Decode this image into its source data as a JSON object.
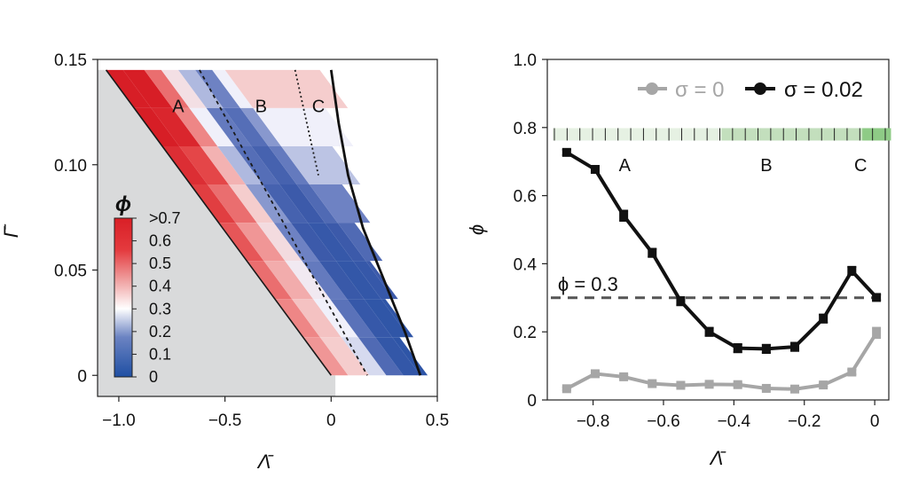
{
  "chart_data": [
    {
      "type": "heatmap",
      "panel": "left",
      "xlabel": "Λ̄",
      "ylabel": "Γ̄",
      "xlim": [
        -1.1,
        0.5
      ],
      "ylim": [
        -0.01,
        0.15
      ],
      "xticks": [
        "−1.0",
        "−0.5",
        "0",
        "0.5"
      ],
      "xtick_values": [
        -1.0,
        -0.5,
        0.0,
        0.5
      ],
      "yticks": [
        "0",
        "0.05",
        "0.10",
        "0.15"
      ],
      "ytick_values": [
        0.0,
        0.05,
        0.1,
        0.15
      ],
      "region_labels": [
        {
          "text": "A",
          "x": -0.72,
          "y": 0.128
        },
        {
          "text": "B",
          "x": -0.33,
          "y": 0.128
        },
        {
          "text": "C",
          "x": -0.06,
          "y": 0.128
        }
      ],
      "colorbar": {
        "title": "ϕ",
        "labels": [
          ">0.7",
          "0.6",
          "0.5",
          "0.4",
          "0.3",
          "0.2",
          "0.1",
          "0"
        ],
        "label_values": [
          0.7,
          0.6,
          0.5,
          0.4,
          0.3,
          0.2,
          0.1,
          0.0
        ]
      },
      "boundaries": {
        "lower_solid": {
          "x": [
            -1.06,
            0.0
          ],
          "y": [
            0.145,
            0.0
          ]
        },
        "dashed_AB": {
          "x": [
            -0.62,
            0.17
          ],
          "y": [
            0.145,
            0.0
          ]
        },
        "dotted_BC": {
          "x": [
            -0.17,
            -0.06
          ],
          "y": [
            0.145,
            0.095
          ]
        },
        "upper_solid": {
          "x": [
            0.0,
            0.035,
            0.08,
            0.15,
            0.25,
            0.35,
            0.42
          ],
          "y": [
            0.145,
            0.12,
            0.095,
            0.07,
            0.045,
            0.02,
            0.0
          ]
        }
      },
      "ridges": {
        "a_offsets": [
          -1.06,
          -0.88,
          -0.7,
          -0.52,
          -0.34,
          -0.16,
          0.0,
          0.16,
          0.32
        ],
        "b_offsets": [
          0.0,
          0.08,
          0.18,
          0.26,
          0.34,
          0.42,
          0.5,
          0.56
        ],
        "values": [
          [
            0.75,
            0.72,
            0.55,
            0.35,
            0.25,
            0.2,
            0.3,
            0.4
          ],
          [
            0.7,
            0.68,
            0.52,
            0.3,
            0.18,
            0.15,
            0.22,
            0.3
          ],
          [
            0.66,
            0.6,
            0.45,
            0.25,
            0.15,
            0.12,
            0.18,
            0.26
          ],
          [
            0.62,
            0.55,
            0.4,
            0.22,
            0.12,
            0.1,
            0.14,
            0.2
          ],
          [
            0.58,
            0.5,
            0.36,
            0.2,
            0.1,
            0.08,
            0.1,
            0.14
          ],
          [
            0.55,
            0.46,
            0.32,
            0.18,
            0.09,
            0.07,
            0.08,
            0.1
          ],
          [
            0.52,
            0.42,
            0.3,
            0.16,
            0.08,
            0.06,
            0.06,
            0.08
          ],
          [
            0.5,
            0.4,
            0.28,
            0.14,
            0.07,
            0.05,
            0.05,
            0.06
          ]
        ]
      },
      "grey_region": "excluded"
    },
    {
      "type": "line",
      "panel": "right",
      "xlabel": "Λ̄",
      "ylabel": "ϕ",
      "xlim": [
        -0.93,
        0.04
      ],
      "ylim": [
        0.0,
        1.0
      ],
      "xticks": [
        "−0.8",
        "−0.6",
        "−0.4",
        "−0.2",
        "0"
      ],
      "xtick_values": [
        -0.8,
        -0.6,
        -0.4,
        -0.2,
        0.0
      ],
      "yticks": [
        "0",
        "0.2",
        "0.4",
        "0.6",
        "0.8",
        "1.0"
      ],
      "ytick_values": [
        0.0,
        0.2,
        0.4,
        0.6,
        0.8,
        1.0
      ],
      "x": [
        -0.875,
        -0.794,
        -0.713,
        -0.632,
        -0.551,
        -0.47,
        -0.389,
        -0.308,
        -0.227,
        -0.146,
        -0.065,
        0.005
      ],
      "series": [
        {
          "name": "σ = 0",
          "color": "#a6a6a6",
          "values": [
            0.033,
            0.077,
            0.068,
            0.048,
            0.043,
            0.046,
            0.045,
            0.034,
            0.032,
            0.044,
            0.082,
            0.197
          ],
          "errors": [
            0.004,
            0.006,
            0.006,
            0.005,
            0.005,
            0.005,
            0.005,
            0.004,
            0.004,
            0.005,
            0.007,
            0.015
          ]
        },
        {
          "name": "σ = 0.02",
          "color": "#111111",
          "values": [
            0.727,
            0.677,
            0.541,
            0.432,
            0.29,
            0.2,
            0.152,
            0.15,
            0.156,
            0.239,
            0.379,
            0.301
          ],
          "errors": [
            0.008,
            0.01,
            0.015,
            0.012,
            0.012,
            0.012,
            0.012,
            0.012,
            0.012,
            0.012,
            0.012,
            0.008
          ]
        }
      ],
      "reference_line": {
        "y": 0.3,
        "label": "ϕ = 0.3",
        "color": "#555555",
        "style": "dashed"
      },
      "strip": {
        "y_center": 0.78,
        "colors": [
          "#e6f1e3",
          "#e6f1e3",
          "#e6f1e3",
          "#e6f1e3",
          "#e6f1e3",
          "#e4f0e1",
          "#c3dfbd",
          "#c3dfbd",
          "#c3dfbd",
          "#c3dfbd",
          "#c3dfbd",
          "#8ecb86"
        ]
      },
      "region_labels": [
        {
          "text": "A",
          "x": -0.71,
          "y": 0.69
        },
        {
          "text": "B",
          "x": -0.308,
          "y": 0.69
        },
        {
          "text": "C",
          "x": -0.04,
          "y": 0.69
        }
      ],
      "legend": {
        "placement": "top-right"
      }
    }
  ]
}
